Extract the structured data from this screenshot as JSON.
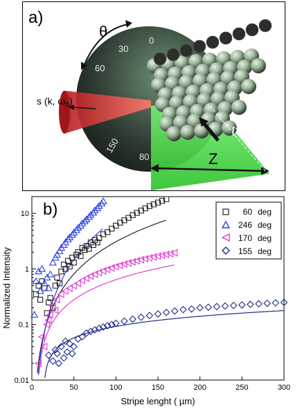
{
  "panel_a": {
    "label": "a)",
    "theta_label": "θ",
    "dial_ticks": [
      "0",
      "30",
      "60",
      "150",
      "80"
    ],
    "beam_label": "s (k, ω",
    "beam_subscript": "0",
    "beam_close": ")",
    "direction_label": "[111]",
    "z_label": "Z",
    "colors": {
      "beam": "#e23c3c",
      "pump": "#38d23a",
      "dial": "#2f3a33",
      "spheres": "#8fa98f"
    }
  },
  "panel_b": {
    "label": "b)",
    "chart_data": {
      "type": "scatter",
      "xlabel": "Stripe lenght ( µm)",
      "ylabel": "Normalized Intensity",
      "xlim": [
        0,
        300
      ],
      "ylim": [
        0.01,
        20
      ],
      "yscale": "log",
      "x_ticks": [
        "0",
        "50",
        "100",
        "150",
        "200",
        "250",
        "300"
      ],
      "y_ticks": [
        "0.01",
        "0.1",
        "1",
        "10"
      ],
      "legend_position": "top-right",
      "series": [
        {
          "name": "60",
          "unit": "deg",
          "marker": "square",
          "color": "#222222",
          "x": [
            5,
            8,
            10,
            12,
            15,
            18,
            20,
            22,
            25,
            28,
            30,
            33,
            35,
            38,
            40,
            43,
            45,
            48,
            50,
            53,
            55,
            58,
            60,
            63,
            65,
            68,
            70,
            73,
            75,
            78,
            80,
            85,
            90,
            95,
            100,
            105,
            110,
            115,
            120,
            125,
            130,
            135,
            140,
            145,
            150,
            155,
            160
          ],
          "y": [
            0.35,
            0.5,
            0.28,
            0.6,
            0.45,
            0.16,
            0.25,
            0.3,
            0.2,
            0.5,
            0.7,
            0.55,
            0.9,
            1.2,
            1.0,
            1.4,
            1.1,
            1.6,
            1.3,
            1.8,
            2.0,
            1.7,
            2.4,
            2.2,
            2.6,
            2.3,
            3.0,
            2.7,
            3.3,
            3.0,
            3.6,
            4.2,
            4.6,
            5.3,
            6.0,
            6.8,
            7.5,
            8.3,
            9.3,
            10.2,
            11.2,
            12.3,
            13.5,
            14.5,
            15.6,
            16.8,
            18.0
          ]
        },
        {
          "name": "246",
          "unit": "deg",
          "marker": "triangle-up",
          "color": "#2a3fe0",
          "x": [
            3,
            5,
            8,
            10,
            12,
            15,
            18,
            20,
            22,
            25,
            28,
            30,
            33,
            35,
            38,
            40,
            43,
            45,
            48,
            50,
            53,
            55,
            58,
            60,
            63,
            65,
            68,
            70,
            73,
            75,
            78,
            80,
            83,
            85
          ],
          "y": [
            0.15,
            0.6,
            0.9,
            0.4,
            1.0,
            0.55,
            0.7,
            0.45,
            0.8,
            1.3,
            1.6,
            1.8,
            2.1,
            2.4,
            2.7,
            3.0,
            3.4,
            3.7,
            4.1,
            4.5,
            5.0,
            5.5,
            6.0,
            6.6,
            7.2,
            7.8,
            8.6,
            9.4,
            10.3,
            11.3,
            12.4,
            13.6,
            15.0,
            16.5
          ]
        },
        {
          "name": "170",
          "unit": "deg",
          "marker": "triangle-left",
          "color": "#e23ad0",
          "x": [
            8,
            12,
            15,
            18,
            20,
            22,
            25,
            28,
            30,
            35,
            40,
            45,
            50,
            55,
            60,
            65,
            70,
            75,
            80,
            85,
            90,
            95,
            100,
            105,
            110,
            115,
            120,
            125,
            130,
            135,
            140,
            145,
            150,
            155,
            160,
            165,
            170
          ],
          "y": [
            0.02,
            0.06,
            0.04,
            0.1,
            0.12,
            0.15,
            0.22,
            0.18,
            0.28,
            0.35,
            0.4,
            0.45,
            0.5,
            0.55,
            0.62,
            0.68,
            0.74,
            0.8,
            0.86,
            0.92,
            0.98,
            1.04,
            1.1,
            1.16,
            1.22,
            1.28,
            1.34,
            1.4,
            1.46,
            1.52,
            1.58,
            1.64,
            1.7,
            1.76,
            1.82,
            1.88,
            1.95
          ]
        },
        {
          "name": "155",
          "unit": "deg",
          "marker": "diamond",
          "color": "#1d2a8a",
          "x": [
            20,
            25,
            28,
            30,
            32,
            35,
            38,
            40,
            42,
            45,
            48,
            50,
            55,
            60,
            65,
            70,
            75,
            80,
            85,
            90,
            95,
            100,
            110,
            120,
            130,
            140,
            150,
            160,
            170,
            180,
            190,
            200,
            210,
            220,
            230,
            240,
            250,
            260,
            270,
            280,
            290,
            300
          ],
          "y": [
            0.028,
            0.022,
            0.035,
            0.03,
            0.02,
            0.04,
            0.025,
            0.05,
            0.032,
            0.045,
            0.03,
            0.04,
            0.055,
            0.06,
            0.07,
            0.075,
            0.08,
            0.085,
            0.09,
            0.095,
            0.1,
            0.105,
            0.115,
            0.125,
            0.135,
            0.145,
            0.155,
            0.165,
            0.175,
            0.185,
            0.19,
            0.2,
            0.205,
            0.21,
            0.215,
            0.22,
            0.225,
            0.23,
            0.235,
            0.24,
            0.245,
            0.25
          ]
        }
      ]
    }
  }
}
